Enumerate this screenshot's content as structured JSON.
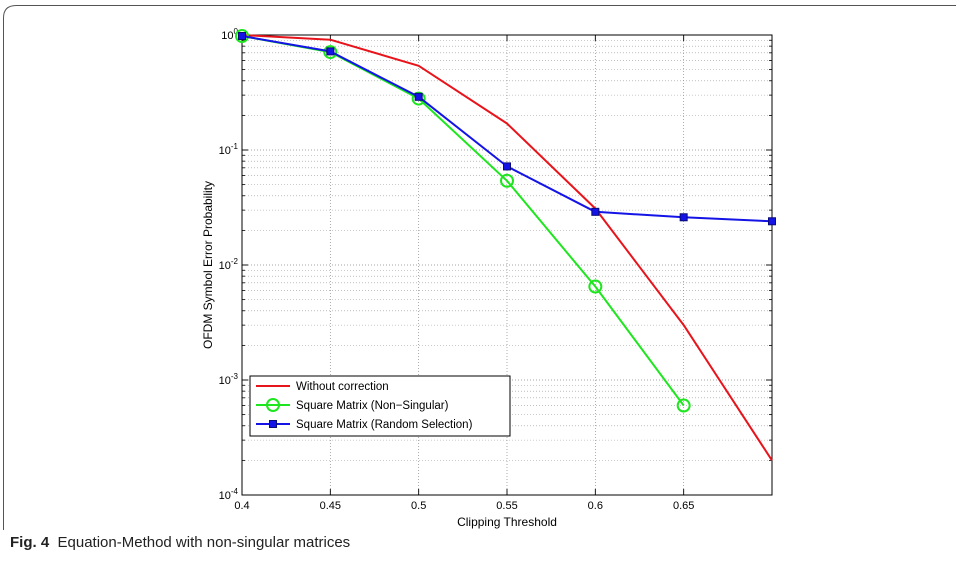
{
  "chart_data": {
    "type": "line",
    "title": "",
    "xlabel": "Clipping Threshold",
    "ylabel": "OFDM Symbol Error Probability",
    "xlim": [
      0.4,
      0.7
    ],
    "ylim": [
      0.0001,
      1
    ],
    "yscale": "log",
    "grid": true,
    "legend_position": "bottom-left",
    "x_ticks": [
      "0.4",
      "0.45",
      "0.5",
      "0.55",
      "0.6",
      "0.65"
    ],
    "x_tick_values": [
      0.4,
      0.45,
      0.5,
      0.55,
      0.6,
      0.65
    ],
    "y_ticks": [
      {
        "base": "10",
        "exp": "0",
        "value": 1
      },
      {
        "base": "10",
        "exp": "-1",
        "value": 0.1
      },
      {
        "base": "10",
        "exp": "-2",
        "value": 0.01
      },
      {
        "base": "10",
        "exp": "-3",
        "value": 0.001
      },
      {
        "base": "10",
        "exp": "-4",
        "value": 0.0001
      }
    ],
    "series": [
      {
        "name": "Without correction",
        "color": "#e8141b",
        "marker": "none",
        "x": [
          0.4,
          0.45,
          0.5,
          0.55,
          0.6,
          0.65,
          0.7
        ],
        "y": [
          1.0,
          0.91,
          0.54,
          0.17,
          0.031,
          0.003,
          0.0002
        ]
      },
      {
        "name": "Square Matrix (Non−Singular)",
        "color": "#1ee61e",
        "marker": "circle",
        "x": [
          0.4,
          0.45,
          0.5,
          0.55,
          0.6,
          0.65
        ],
        "y": [
          0.98,
          0.71,
          0.28,
          0.054,
          0.0065,
          0.0006
        ]
      },
      {
        "name": "Square Matrix (Random Selection)",
        "color": "#1414e6",
        "marker": "square",
        "x": [
          0.4,
          0.45,
          0.5,
          0.55,
          0.6,
          0.65,
          0.7
        ],
        "y": [
          0.98,
          0.72,
          0.29,
          0.072,
          0.029,
          0.026,
          0.024
        ]
      }
    ]
  },
  "caption": {
    "label": "Fig. 4",
    "text": "Equation-Method with non-singular matrices"
  }
}
